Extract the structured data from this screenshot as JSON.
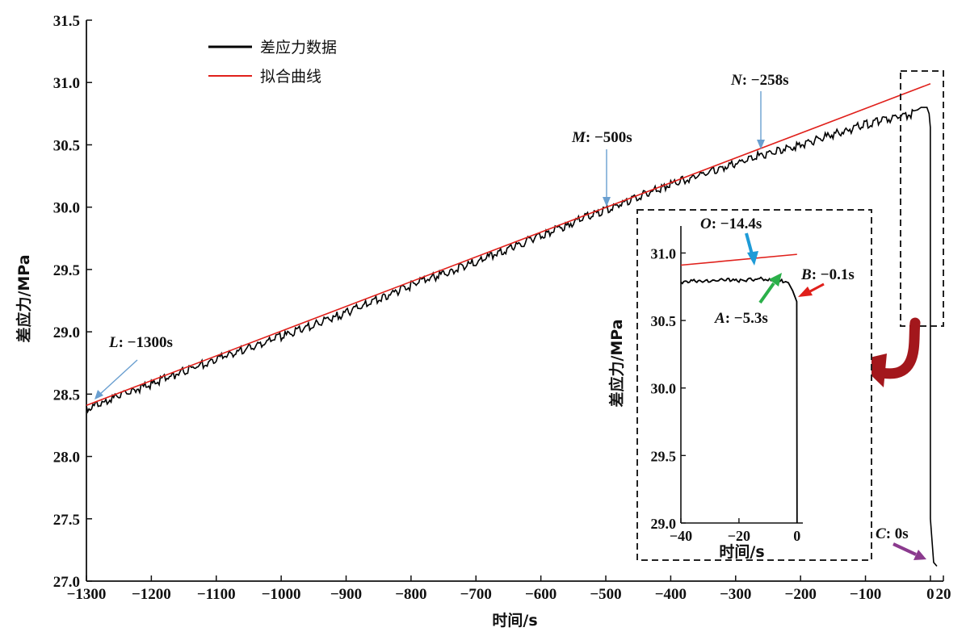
{
  "chart_data": [
    {
      "type": "line",
      "xlabel": "时间/s",
      "ylabel": "差应力/MPa",
      "xlim": [
        -1300,
        20
      ],
      "ylim": [
        27.0,
        31.5
      ],
      "x_ticks": [
        -1300,
        -1200,
        -1100,
        -1000,
        -900,
        -800,
        -700,
        -600,
        -500,
        -400,
        -300,
        -200,
        -100,
        0,
        20
      ],
      "x_tick_labels": [
        "−1300",
        "−1200",
        "−1100",
        "−1000",
        "−900",
        "−800",
        "−700",
        "−600",
        "−500",
        "−400",
        "−300",
        "−200",
        "−100",
        "0",
        "20"
      ],
      "y_ticks": [
        27.0,
        27.5,
        28.0,
        28.5,
        29.0,
        29.5,
        30.0,
        30.5,
        31.0,
        31.5
      ],
      "y_tick_labels": [
        "27.0",
        "27.5",
        "28.0",
        "28.5",
        "29.0",
        "29.5",
        "30.0",
        "30.5",
        "31.0",
        "31.5"
      ],
      "legend_position": "top-left",
      "series": [
        {
          "name": "差应力数据",
          "color": "#000000",
          "x": [
            -1300,
            -1200,
            -1100,
            -1000,
            -900,
            -800,
            -700,
            -600,
            -500,
            -400,
            -300,
            -258,
            -200,
            -150,
            -100,
            -50,
            -20,
            -14.4,
            -5.3,
            -2,
            -0.1,
            0,
            5,
            10
          ],
          "y": [
            28.4,
            28.6,
            28.8,
            28.98,
            29.17,
            29.39,
            29.58,
            29.79,
            30.0,
            30.2,
            30.37,
            30.44,
            30.52,
            30.6,
            30.68,
            30.74,
            30.78,
            30.8,
            30.8,
            30.75,
            30.64,
            27.5,
            27.15,
            27.12
          ]
        },
        {
          "name": "拟合曲线",
          "color": "#e0201b",
          "x": [
            -1300,
            0
          ],
          "y": [
            28.41,
            30.99
          ]
        }
      ],
      "annotations": [
        {
          "label": "L",
          "text": ": −1300s",
          "x": -1300,
          "y": 28.43,
          "color": "#6a9fd0"
        },
        {
          "label": "M",
          "text": ": −500s",
          "x": -500,
          "y": 30.0,
          "color": "#6a9fd0"
        },
        {
          "label": "N",
          "text": ": −258s",
          "x": -258,
          "y": 30.45,
          "color": "#6a9fd0"
        },
        {
          "label": "C",
          "text": ": 0s",
          "x": -3,
          "y": 27.15,
          "color": "#8b3a8e"
        }
      ]
    },
    {
      "type": "line",
      "xlabel": "时间/s",
      "ylabel": "差应力/MPa",
      "xlim": [
        -40,
        2
      ],
      "ylim": [
        29.0,
        31.2
      ],
      "x_ticks": [
        -40,
        -20,
        0
      ],
      "x_tick_labels": [
        "−40",
        "−20",
        "0"
      ],
      "y_ticks": [
        29.0,
        29.5,
        30.0,
        30.5,
        31.0
      ],
      "y_tick_labels": [
        "29.0",
        "29.5",
        "30.0",
        "30.5",
        "31.0"
      ],
      "series": [
        {
          "color": "#000000",
          "x": [
            -40,
            -35,
            -30,
            -25,
            -20,
            -15,
            -14.4,
            -10,
            -5.3,
            -3,
            -1.5,
            -0.1,
            0
          ],
          "y": [
            30.79,
            30.8,
            30.8,
            30.81,
            30.8,
            30.81,
            30.82,
            30.81,
            30.8,
            30.78,
            30.72,
            30.64,
            29.0
          ]
        },
        {
          "color": "#e0201b",
          "x": [
            -40,
            0
          ],
          "y": [
            30.91,
            30.99
          ]
        }
      ],
      "annotations": [
        {
          "label": "O",
          "text": ": −14.4s",
          "x": -14.4,
          "y": 30.82,
          "color": "#1e9bd7"
        },
        {
          "label": "A",
          "text": ": −5.3s",
          "x": -5.3,
          "y": 30.8,
          "color": "#2bb04a"
        },
        {
          "label": "B",
          "text": ": −0.1s",
          "x": -0.1,
          "y": 30.64,
          "color": "#e0201b"
        }
      ]
    }
  ],
  "colors": {
    "data_line": "#000000",
    "fit_line": "#e0201b",
    "inset_box": "#222222",
    "curved_arrow": "#a3171c"
  }
}
